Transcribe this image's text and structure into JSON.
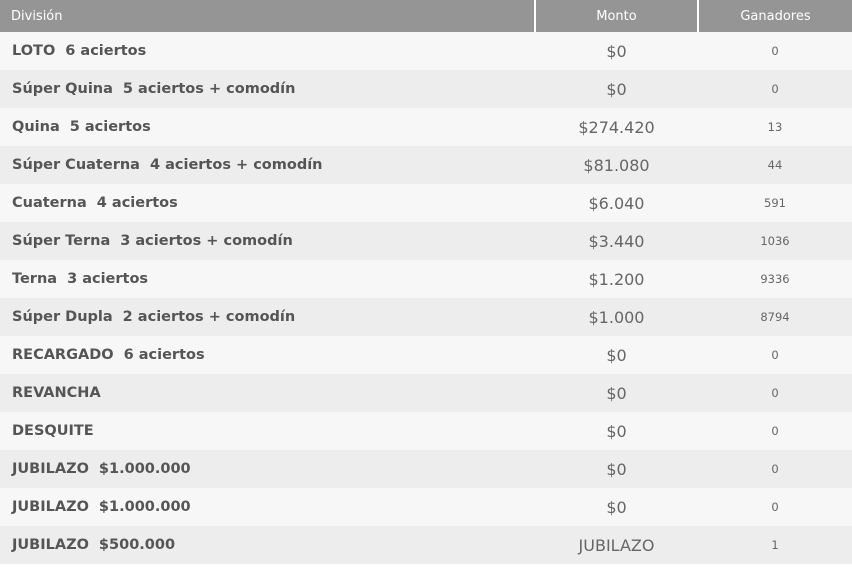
{
  "table": {
    "headers": {
      "division": "División",
      "monto": "Monto",
      "ganadores": "Ganadores"
    },
    "rows": [
      {
        "name": "LOTO",
        "detail": "6 aciertos",
        "monto": "$0",
        "ganadores": "0"
      },
      {
        "name": "Súper Quina",
        "detail": "5 aciertos + comodín",
        "monto": "$0",
        "ganadores": "0"
      },
      {
        "name": "Quina",
        "detail": "5 aciertos",
        "monto": "$274.420",
        "ganadores": "13"
      },
      {
        "name": "Súper Cuaterna",
        "detail": "4 aciertos + comodín",
        "monto": "$81.080",
        "ganadores": "44"
      },
      {
        "name": "Cuaterna",
        "detail": "4 aciertos",
        "monto": "$6.040",
        "ganadores": "591"
      },
      {
        "name": "Súper Terna",
        "detail": "3 aciertos + comodín",
        "monto": "$3.440",
        "ganadores": "1036"
      },
      {
        "name": "Terna",
        "detail": "3 aciertos",
        "monto": "$1.200",
        "ganadores": "9336"
      },
      {
        "name": "Súper Dupla",
        "detail": "2 aciertos + comodín",
        "monto": "$1.000",
        "ganadores": "8794"
      },
      {
        "name": "RECARGADO",
        "detail": "6 aciertos",
        "monto": "$0",
        "ganadores": "0"
      },
      {
        "name": "REVANCHA",
        "detail": "",
        "monto": "$0",
        "ganadores": "0"
      },
      {
        "name": "DESQUITE",
        "detail": "",
        "monto": "$0",
        "ganadores": "0"
      },
      {
        "name": "JUBILAZO",
        "detail": "$1.000.000",
        "monto": "$0",
        "ganadores": "0"
      },
      {
        "name": "JUBILAZO",
        "detail": "$1.000.000",
        "monto": "$0",
        "ganadores": "0"
      },
      {
        "name": "JUBILAZO",
        "detail": "$500.000",
        "monto": "JUBILAZO",
        "ganadores": "1"
      }
    ]
  }
}
